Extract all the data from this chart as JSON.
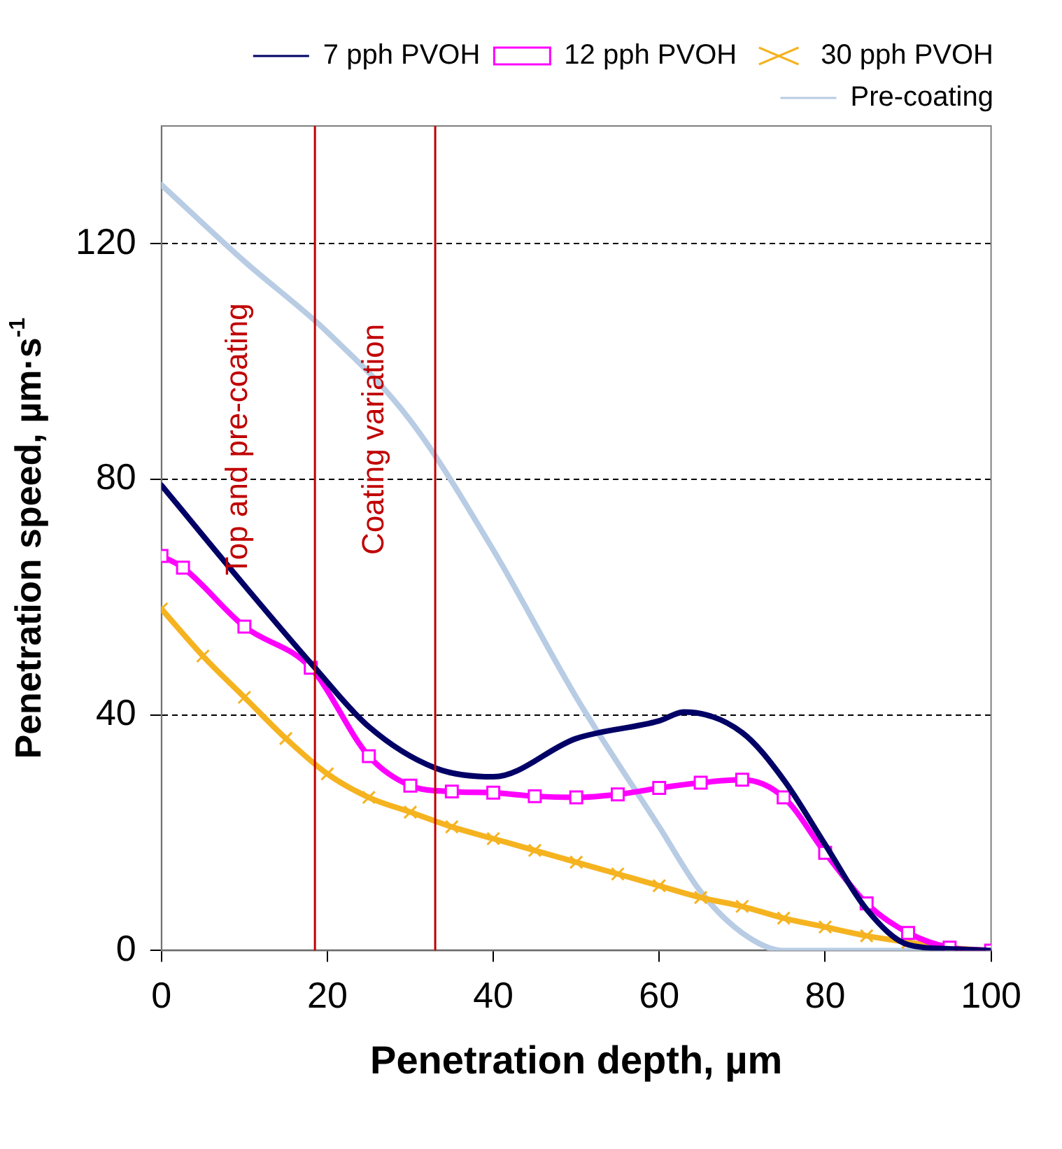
{
  "chart_data": {
    "type": "line",
    "xlabel": "Penetration depth, µm",
    "ylabel": "Penetration speed, µm·s$^{-1}$",
    "xlim": [
      0,
      100
    ],
    "xticks": [
      0,
      20,
      40,
      60,
      80,
      100
    ],
    "ylim": [
      0,
      140
    ],
    "yticks": [
      0,
      40,
      80,
      120
    ],
    "grid": "y",
    "legend": "top right",
    "series": [
      {
        "name": "7 pph PVOH",
        "color": "#000066",
        "marker": "none",
        "x": [
          0,
          10,
          18.5,
          25,
          33,
          40,
          50,
          60,
          63,
          70,
          75,
          80,
          85,
          90,
          95,
          100
        ],
        "values": [
          79,
          62,
          48,
          38,
          31,
          29.5,
          36,
          39,
          40.5,
          37,
          29,
          18,
          7,
          1,
          0.3,
          0
        ]
      },
      {
        "name": "12 pph PVOH",
        "color": "#ff00ff",
        "marker": "square",
        "x": [
          0,
          2.6,
          10,
          18,
          25,
          30,
          35,
          40,
          45,
          50,
          55,
          60,
          65,
          70,
          75,
          80,
          85,
          90,
          95,
          100
        ],
        "values": [
          67,
          65,
          55,
          48,
          33,
          28,
          27,
          26.8,
          26.2,
          26,
          26.5,
          27.6,
          28.5,
          29,
          26,
          16.6,
          8,
          3,
          0.5,
          0
        ]
      },
      {
        "name": "30 pph PVOH",
        "color": "#f5b320",
        "marker": "cross",
        "x": [
          0,
          5,
          10,
          15,
          20,
          25,
          30,
          35,
          40,
          45,
          50,
          55,
          60,
          65,
          70,
          75,
          80,
          85,
          90,
          95,
          100
        ],
        "values": [
          58,
          50,
          43,
          36,
          30,
          26,
          23.5,
          21,
          19,
          17,
          15,
          13,
          11,
          9,
          7.5,
          5.5,
          4,
          2.5,
          1.4,
          0.5,
          0
        ]
      },
      {
        "name": "Pre-coating",
        "color": "#b8cce4",
        "marker": "none",
        "x": [
          0,
          10,
          20,
          30,
          40,
          50,
          60,
          65,
          70,
          75,
          80,
          90,
          100
        ],
        "values": [
          130,
          117,
          105,
          90,
          68,
          43,
          21,
          10,
          3,
          0,
          0,
          0,
          0
        ]
      }
    ],
    "ref_lines": [
      {
        "axis": "x",
        "value": 18.5,
        "label": "Top and pre-coating",
        "color": "#c00000"
      },
      {
        "axis": "x",
        "value": 33,
        "label": "Coating variation",
        "color": "#c00000"
      }
    ]
  }
}
